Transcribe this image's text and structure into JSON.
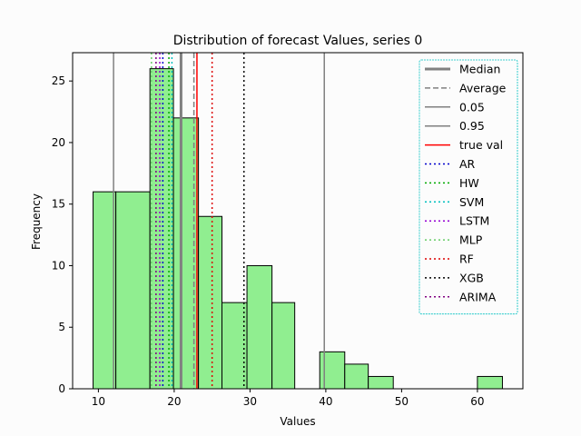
{
  "chart_data": {
    "type": "bar",
    "title": "Distribution of forecast Values, series 0",
    "xlabel": "Values",
    "ylabel": "Frequency",
    "xlim": [
      6.6,
      66.0
    ],
    "ylim": [
      0,
      27.3
    ],
    "xticks": [
      10,
      20,
      30,
      40,
      50,
      60
    ],
    "yticks": [
      0,
      5,
      10,
      15,
      20,
      25
    ],
    "bar_color": "#90ee90",
    "bins": [
      {
        "start": 9.3,
        "end": 12.3,
        "count": 16
      },
      {
        "start": 12.3,
        "end": 16.8,
        "count": 16
      },
      {
        "start": 16.8,
        "end": 19.9,
        "count": 26
      },
      {
        "start": 19.9,
        "end": 23.2,
        "count": 22
      },
      {
        "start": 23.2,
        "end": 26.3,
        "count": 14
      },
      {
        "start": 26.3,
        "end": 29.6,
        "count": 7
      },
      {
        "start": 29.6,
        "end": 32.9,
        "count": 10
      },
      {
        "start": 32.9,
        "end": 35.9,
        "count": 7
      },
      {
        "start": 35.9,
        "end": 39.2,
        "count": 0
      },
      {
        "start": 39.2,
        "end": 42.5,
        "count": 3
      },
      {
        "start": 42.5,
        "end": 45.6,
        "count": 2
      },
      {
        "start": 45.6,
        "end": 48.9,
        "count": 1
      },
      {
        "start": 48.9,
        "end": 52.2,
        "count": 0
      },
      {
        "start": 52.2,
        "end": 55.3,
        "count": 0
      },
      {
        "start": 55.3,
        "end": 60.0,
        "count": 0
      },
      {
        "start": 60.0,
        "end": 63.3,
        "count": 1
      }
    ],
    "vlines": [
      {
        "name": "Median",
        "x": 20.9,
        "color": "#808080",
        "style": "solid",
        "width": 3
      },
      {
        "name": "Average",
        "x": 22.6,
        "color": "#808080",
        "style": "dashed",
        "width": 1.5
      },
      {
        "name": "0.05",
        "x": 12.0,
        "color": "#808080",
        "style": "solid",
        "width": 1.5
      },
      {
        "name": "0.95",
        "x": 39.8,
        "color": "#808080",
        "style": "solid",
        "width": 1.5
      },
      {
        "name": "true val",
        "x": 23.0,
        "color": "#ff0000",
        "style": "solid",
        "width": 1.5
      },
      {
        "name": "AR",
        "x": 18.5,
        "color": "#0000cc",
        "style": "dotted",
        "width": 1.5
      },
      {
        "name": "HW",
        "x": 19.3,
        "color": "#00aa00",
        "style": "dotted",
        "width": 1.5
      },
      {
        "name": "SVM",
        "x": 19.7,
        "color": "#00bfbf",
        "style": "dotted",
        "width": 1.5
      },
      {
        "name": "LSTM",
        "x": 18.1,
        "color": "#9400d3",
        "style": "dotted",
        "width": 1.5
      },
      {
        "name": "MLP",
        "x": 17.0,
        "color": "#66cc66",
        "style": "dotted",
        "width": 1.5
      },
      {
        "name": "RF",
        "x": 25.0,
        "color": "#dd0000",
        "style": "dotted",
        "width": 1.5
      },
      {
        "name": "XGB",
        "x": 29.2,
        "color": "#000000",
        "style": "dotted",
        "width": 1.5
      },
      {
        "name": "ARIMA",
        "x": 17.6,
        "color": "#800080",
        "style": "dotted",
        "width": 1.5
      }
    ],
    "legend_position": "upper right",
    "grid": false
  }
}
